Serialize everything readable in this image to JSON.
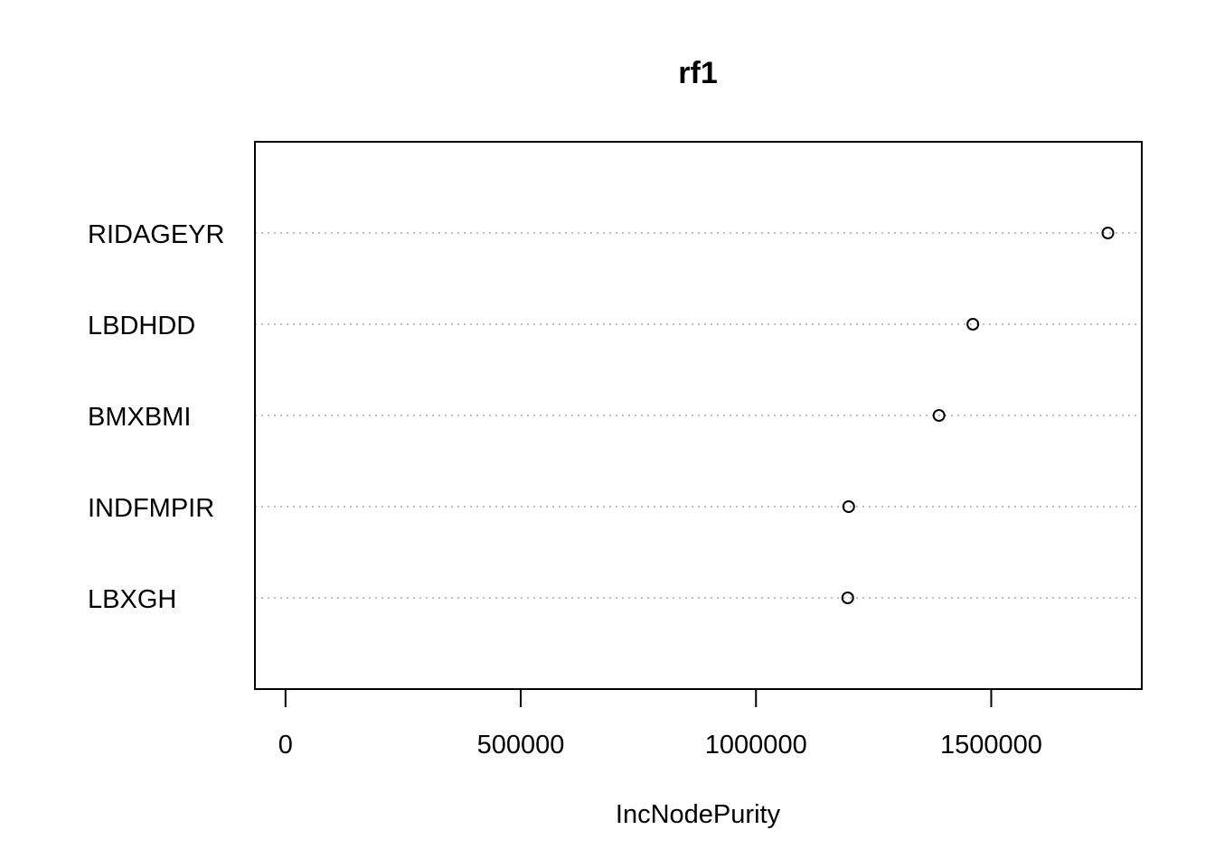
{
  "chart_data": {
    "type": "scatter",
    "title": "rf1",
    "xlabel": "IncNodePurity",
    "ylabel": "",
    "xlim": [
      -65000,
      1820000
    ],
    "x_ticks": [
      0,
      500000,
      1000000,
      1500000
    ],
    "x_tick_labels": [
      "0",
      "500000",
      "1000000",
      "1500000"
    ],
    "grid": true,
    "categories": [
      "RIDAGEYR",
      "LBDHDD",
      "BMXBMI",
      "INDFMPIR",
      "LBXGH"
    ],
    "values": [
      1748000,
      1461000,
      1389000,
      1197000,
      1195000
    ]
  }
}
